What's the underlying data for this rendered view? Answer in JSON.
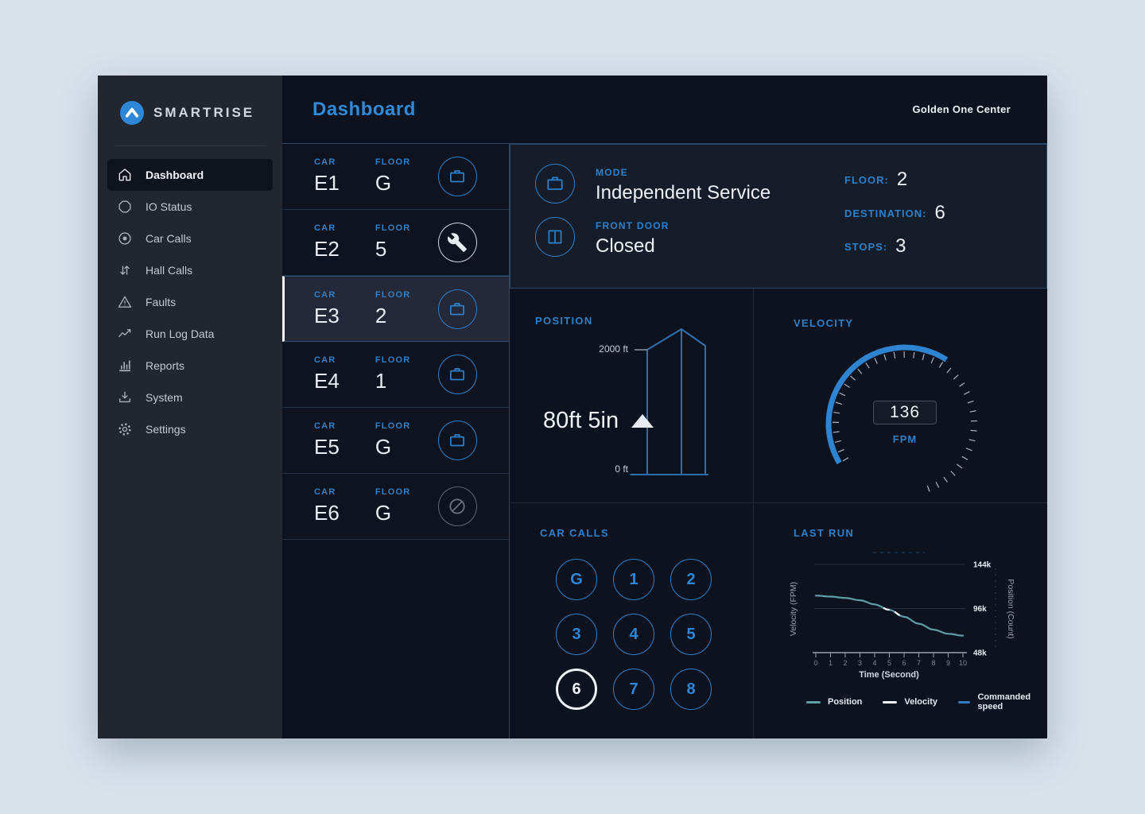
{
  "window": {
    "page_title": "Dashboard",
    "site_name": "Golden One Center"
  },
  "sidebar": {
    "brand": "SMARTRISE",
    "items": [
      {
        "label": "Dashboard",
        "icon": "home-icon",
        "active": true
      },
      {
        "label": "IO Status",
        "icon": "io-status-icon",
        "active": false
      },
      {
        "label": "Car Calls",
        "icon": "car-calls-icon",
        "active": false
      },
      {
        "label": "Hall Calls",
        "icon": "hall-calls-icon",
        "active": false
      },
      {
        "label": "Faults",
        "icon": "warning-triangle-icon",
        "active": false
      },
      {
        "label": "Run Log Data",
        "icon": "trend-line-icon",
        "active": false
      },
      {
        "label": "Reports",
        "icon": "bar-chart-icon",
        "active": false
      },
      {
        "label": "System",
        "icon": "download-icon",
        "active": false
      },
      {
        "label": "Settings",
        "icon": "gear-icon",
        "active": false
      }
    ]
  },
  "car_list": {
    "car_label": "CAR",
    "floor_label": "FLOOR",
    "rows": [
      {
        "car": "E1",
        "floor": "G",
        "status_icon": "briefcase-icon",
        "selected": false
      },
      {
        "car": "E2",
        "floor": "5",
        "status_icon": "wrench-icon",
        "selected": false
      },
      {
        "car": "E3",
        "floor": "2",
        "status_icon": "briefcase-icon",
        "selected": true
      },
      {
        "car": "E4",
        "floor": "1",
        "status_icon": "briefcase-icon",
        "selected": false
      },
      {
        "car": "E5",
        "floor": "G",
        "status_icon": "briefcase-icon",
        "selected": false
      },
      {
        "car": "E6",
        "floor": "G",
        "status_icon": "no-entry-icon",
        "selected": false
      }
    ]
  },
  "status": {
    "mode_label": "MODE",
    "mode_value": "Independent Service",
    "front_door_label": "FRONT DOOR",
    "front_door_value": "Closed",
    "floor_label": "FLOOR:",
    "floor_value": "2",
    "destination_label": "DESTINATION:",
    "destination_value": "6",
    "stops_label": "STOPS:",
    "stops_value": "3"
  },
  "position_panel": {
    "title": "POSITION",
    "top_scale": "2000 ft",
    "bottom_scale": "0 ft",
    "current_position": "80ft 5in",
    "direction": "up"
  },
  "velocity_panel": {
    "title": "VELOCITY",
    "value": "136",
    "unit": "FPM"
  },
  "car_calls_panel": {
    "title": "CAR CALLS",
    "buttons": [
      "G",
      "1",
      "2",
      "3",
      "4",
      "5",
      "6",
      "7",
      "8"
    ],
    "active": "6"
  },
  "last_run_panel": {
    "title": "LAST RUN"
  },
  "chart_data": {
    "type": "line",
    "title": "LAST RUN",
    "xlabel": "Time (Second)",
    "ylabel_left": "Velocity (FPM)",
    "ylabel_right": "Position (Count)",
    "x_ticks": [
      0,
      1,
      2,
      3,
      4,
      5,
      6,
      7,
      8,
      9,
      10
    ],
    "xlim": [
      0,
      10
    ],
    "y_right_ticks": [
      "144k",
      "96k",
      "48k"
    ],
    "y_right_values": [
      144000,
      96000,
      48000
    ],
    "grid": true,
    "legend_position": "bottom",
    "legend": [
      "Position",
      "Velocity",
      "Commanded speed"
    ],
    "series": [
      {
        "name": "Position",
        "color": "#5f9ea6",
        "x": [
          0,
          1,
          2,
          3,
          4,
          5,
          6,
          7,
          8,
          9,
          10
        ],
        "values": [
          110000,
          109000,
          107500,
          105000,
          100500,
          94500,
          87000,
          79500,
          73000,
          68500,
          66500
        ]
      },
      {
        "name": "Velocity",
        "color": "#f2f5f8",
        "style": "dashed",
        "x_range": [
          4.55,
          6.15
        ]
      },
      {
        "name": "Commanded speed",
        "color": "#2e7cc3",
        "style": "dashed-faint",
        "x_range": [
          3.9,
          7.4
        ],
        "y_value": 157000
      }
    ]
  },
  "colors": {
    "accent_blue": "#2e80c9",
    "title_blue": "#2f8ad8",
    "teal_series": "#5f9ea6",
    "white_text": "#eef1f6",
    "selected_row_bg": "#232938",
    "panel_bg": "#151d2b",
    "app_bg": "#0c121e",
    "sidebar_bg": "#22262f"
  }
}
